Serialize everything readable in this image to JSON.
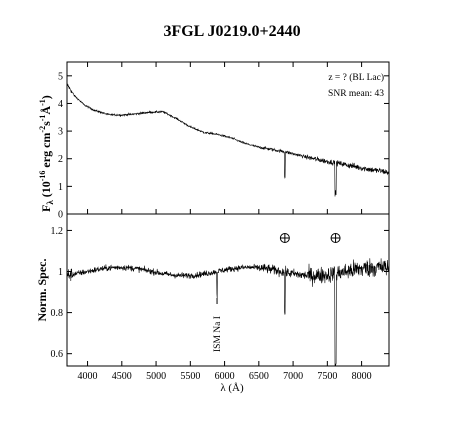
{
  "chart_data": {
    "title": "3FGL J0219.0+2440",
    "xlabel": "λ (Å)",
    "xlim": [
      3700,
      8400
    ],
    "x_ticks": [
      4000,
      4500,
      5000,
      5500,
      6000,
      6500,
      7000,
      7500,
      8000
    ],
    "panels": [
      {
        "type": "line",
        "name": "flux",
        "ylabel_main": "F",
        "ylabel_sub": "λ",
        "ylabel_rest": " (10",
        "ylabel_exp1": "-16",
        "ylabel_mid1": " erg cm",
        "ylabel_exp2": "-2",
        "ylabel_mid2": "s",
        "ylabel_exp3": "-1",
        "ylabel_mid3": "Å",
        "ylabel_exp4": "-1",
        "ylabel_end": ")",
        "ylim": [
          0,
          5.5
        ],
        "y_ticks": [
          0,
          1,
          2,
          3,
          4,
          5
        ],
        "annotations": [
          "z = ? (BL Lac)",
          "SNR mean: 43"
        ],
        "trend": [
          [
            3700,
            4.7
          ],
          [
            3800,
            4.3
          ],
          [
            3950,
            3.95
          ],
          [
            4100,
            3.75
          ],
          [
            4300,
            3.6
          ],
          [
            4500,
            3.58
          ],
          [
            4700,
            3.62
          ],
          [
            4900,
            3.68
          ],
          [
            5100,
            3.7
          ],
          [
            5300,
            3.45
          ],
          [
            5500,
            3.15
          ],
          [
            5700,
            2.95
          ],
          [
            5900,
            2.88
          ],
          [
            6100,
            2.75
          ],
          [
            6300,
            2.55
          ],
          [
            6500,
            2.42
          ],
          [
            6700,
            2.33
          ],
          [
            6900,
            2.24
          ],
          [
            7100,
            2.12
          ],
          [
            7300,
            2.0
          ],
          [
            7500,
            1.9
          ],
          [
            7700,
            1.82
          ],
          [
            7900,
            1.72
          ],
          [
            8100,
            1.62
          ],
          [
            8300,
            1.55
          ],
          [
            8400,
            1.5
          ]
        ]
      },
      {
        "type": "line",
        "name": "normalized",
        "ylabel": "Norm. Spec.",
        "ylim": [
          0.54,
          1.28
        ],
        "y_ticks": [
          0.6,
          0.8,
          1.0,
          1.2
        ],
        "y_tick_labels": [
          "0.6",
          "0.8",
          "1",
          "1.2"
        ],
        "telluric_x": [
          6880,
          7620
        ],
        "line_label": "ISM Na I",
        "line_x": 5890
      }
    ]
  }
}
